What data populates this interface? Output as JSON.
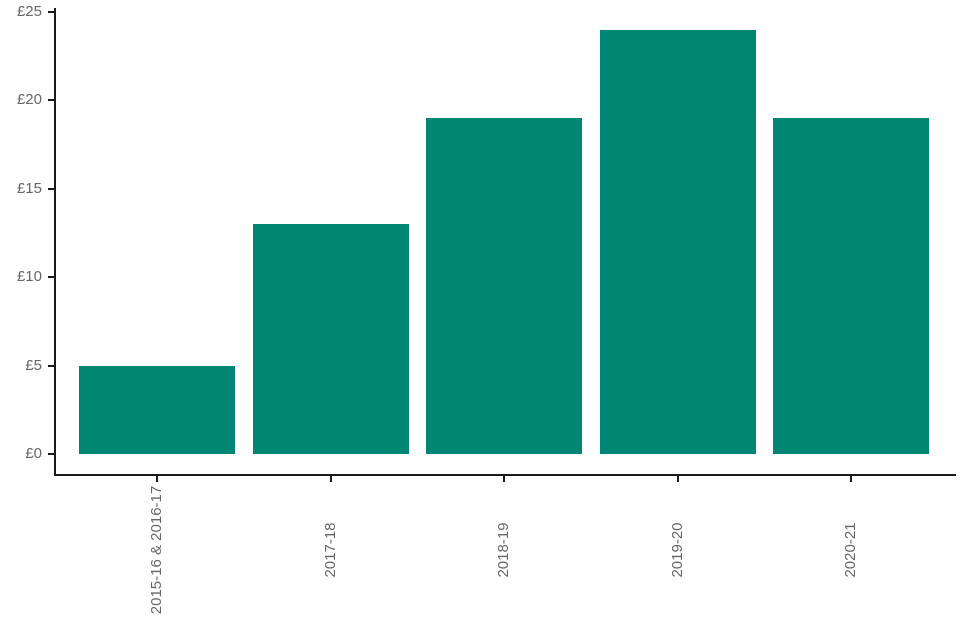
{
  "chart_data": {
    "type": "bar",
    "title": "",
    "xlabel": "",
    "ylabel": "",
    "categories": [
      "2015-16 & 2016-17",
      "2017-18",
      "2018-19",
      "2019-20",
      "2020-21"
    ],
    "values": [
      5,
      13,
      19,
      24,
      19
    ],
    "y_ticks": [
      0,
      5,
      10,
      15,
      20,
      25
    ],
    "y_tick_labels": [
      "£0",
      "£5",
      "£10",
      "£15",
      "£20",
      "£25"
    ],
    "ylim": [
      0,
      25
    ],
    "grid": false,
    "legend": "none",
    "x_label_rotation_deg": 90,
    "colors": {
      "bar": "#008672",
      "axis": "#1a1a1a",
      "tick_label": "#666666",
      "background": "#ffffff"
    }
  }
}
